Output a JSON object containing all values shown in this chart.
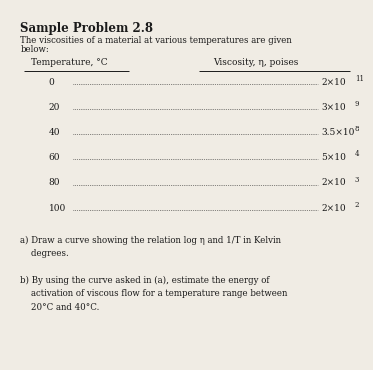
{
  "title": "Sample Problem 2.8",
  "intro_line1": "The viscosities of a material at various temperatures are given",
  "intro_line2": "below:",
  "col1_header": "Temperature, °C",
  "col2_header": "Viscosity, η, poises",
  "temperatures": [
    "0",
    "20",
    "40",
    "60",
    "80",
    "100"
  ],
  "viscosities_text": [
    "2×10",
    "3×10",
    "3.5×10",
    "5×10",
    "2×10",
    "2×10"
  ],
  "exponents": [
    "11",
    "9",
    "8",
    "4",
    "3",
    "2"
  ],
  "part_a_line1": "a) Draw a curve showing the relation log η and 1/T in Kelvin",
  "part_a_line2": "    degrees.",
  "part_b_line1": "b) By using the curve asked in (a), estimate the energy of",
  "part_b_line2": "    activation of viscous flow for a temperature range between",
  "part_b_line3": "    20°C and 40°C.",
  "bg_color": "#f0ece4",
  "text_color": "#1a1a1a",
  "title_fontsize": 8.5,
  "body_fontsize": 6.2,
  "table_fontsize": 6.5
}
